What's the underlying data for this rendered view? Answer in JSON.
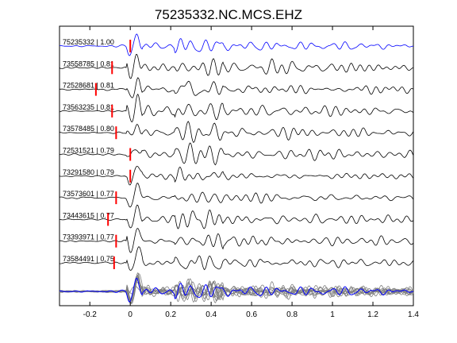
{
  "chart_data": {
    "type": "line",
    "title": "75235332.NC.MCS.EHZ",
    "xlabel": "",
    "ylabel": "",
    "xlim": [
      -0.35,
      1.4
    ],
    "x_ticks": [
      -0.2,
      0,
      0.2,
      0.4,
      0.6,
      0.8,
      1,
      1.2,
      1.4
    ],
    "x_tick_labels": [
      "-0.2",
      "0",
      "0.2",
      "0.4",
      "0.6",
      "0.8",
      "1",
      "1.2",
      "1.4"
    ],
    "grid": false,
    "colors": {
      "reference_trace": "#0000ff",
      "matched_trace": "#000000",
      "stack_traces": "#7f7f7f",
      "pick_marker": "#ff0000"
    },
    "series": [
      {
        "event_id": "75235332",
        "cc": "1.00",
        "label": "75235332 | 1.00",
        "pick_time": 0.0,
        "reference": true
      },
      {
        "event_id": "73558785",
        "cc": "0.81",
        "label": "73558785 | 0.81",
        "pick_time": -0.09
      },
      {
        "event_id": "72528681",
        "cc": "0.81",
        "label": "72528681 | 0.81",
        "pick_time": -0.17
      },
      {
        "event_id": "73563235",
        "cc": "0.81",
        "label": "73563235 | 0.81",
        "pick_time": -0.09
      },
      {
        "event_id": "73578485",
        "cc": "0.80",
        "label": "73578485 | 0.80",
        "pick_time": -0.07
      },
      {
        "event_id": "72531521",
        "cc": "0.79",
        "label": "72531521 | 0.79",
        "pick_time": 0.0
      },
      {
        "event_id": "73291580",
        "cc": "0.79",
        "label": "73291580 | 0.79",
        "pick_time": 0.0
      },
      {
        "event_id": "73573601",
        "cc": "0.77",
        "label": "73573601 | 0.77",
        "pick_time": -0.07
      },
      {
        "event_id": "73443615",
        "cc": "0.77",
        "label": "73443615 | 0.77",
        "pick_time": -0.11
      },
      {
        "event_id": "73393971",
        "cc": "0.77",
        "label": "73393971 | 0.77",
        "pick_time": -0.07
      },
      {
        "event_id": "73584491",
        "cc": "0.75",
        "label": "73584491 | 0.75",
        "pick_time": -0.08
      }
    ]
  }
}
